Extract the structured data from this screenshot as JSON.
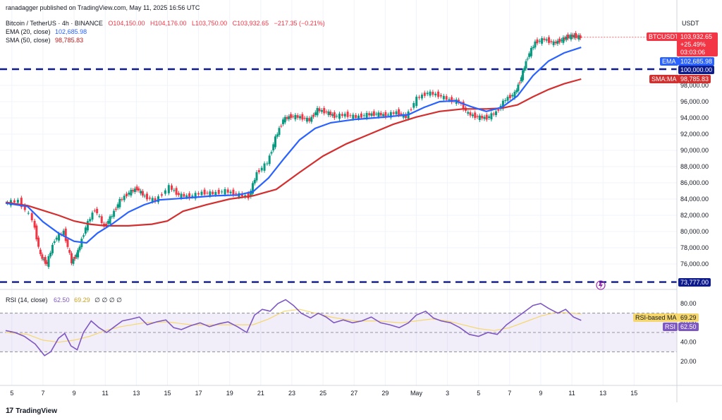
{
  "header": {
    "published_line": "ranadagger published on TradingView.com, May 11, 2025 16:56 UTC",
    "symbol_line": "Bitcoin / TetherUS · 4h · BINANCE",
    "ohlc": {
      "o": "O104,150.00",
      "h": "H104,176.00",
      "l": "L103,750.00",
      "c": "C103,932.65",
      "chg": "−217.35 (−0.21%)"
    },
    "ema_label": "EMA (20, close)",
    "ema_value": "102,685.98",
    "sma_label": "SMA (50, close)",
    "sma_value": "98,785.83",
    "rsi_label": "RSI (14, close)",
    "rsi_value": "62.50",
    "rsi_ma_value": "69.29",
    "rsi_extra": "∅ ∅ ∅ ∅"
  },
  "currency": "USDT",
  "tags": {
    "price_symbol": "BTCUSDT",
    "price_value": "103,932.65",
    "price_change": "+25.49%",
    "countdown": "03:03:06",
    "ema_tag": "EMA",
    "ema_value": "102,685.98",
    "level_100k": "100,000.00",
    "sma_tag": "SMA:MA",
    "sma_value": "98,785.83",
    "level_73k": "73,777.00",
    "rsi_ma_tag": "RSI-based MA",
    "rsi_ma_value": "69.29",
    "rsi_tag": "RSI",
    "rsi_value": "62.50"
  },
  "colors": {
    "up": "#089981",
    "down": "#f23645",
    "ema": "#2962ff",
    "sma": "#d32f2f",
    "level": "#0d1b8c",
    "rsi": "#7e57c2",
    "rsi_ma": "#f5d76e"
  },
  "footer": {
    "brand": "TradingView"
  },
  "chart_data": {
    "type": "line",
    "title": "Bitcoin / TetherUS · 4h · BINANCE",
    "price_axis": {
      "ticks": [
        76000,
        78000,
        80000,
        82000,
        84000,
        86000,
        88000,
        90000,
        92000,
        94000,
        96000,
        98000,
        100000
      ],
      "tick_labels": [
        "76,000.00",
        "78,000.00",
        "80,000.00",
        "82,000.00",
        "84,000.00",
        "86,000.00",
        "88,000.00",
        "90,000.00",
        "92,000.00",
        "94,000.00",
        "96,000.00",
        "98,000.00",
        "100,000.00"
      ],
      "range": [
        74000,
        106000
      ]
    },
    "rsi_axis": {
      "ticks": [
        20,
        40,
        60,
        80
      ],
      "tick_labels": [
        "20.00",
        "40.00",
        "60.00",
        "80.00"
      ],
      "bands": [
        30,
        50,
        70
      ]
    },
    "x_ticks": [
      {
        "day": 5,
        "label": "5"
      },
      {
        "day": 7,
        "label": "7"
      },
      {
        "day": 9,
        "label": "9"
      },
      {
        "day": 11,
        "label": "11"
      },
      {
        "day": 13,
        "label": "13"
      },
      {
        "day": 15,
        "label": "15"
      },
      {
        "day": 17,
        "label": "17"
      },
      {
        "day": 19,
        "label": "19"
      },
      {
        "day": 21,
        "label": "21"
      },
      {
        "day": 23,
        "label": "23"
      },
      {
        "day": 25,
        "label": "25"
      },
      {
        "day": 27,
        "label": "27"
      },
      {
        "day": 29,
        "label": "29"
      },
      {
        "day": 31,
        "label": "May"
      },
      {
        "day": 33,
        "label": "3"
      },
      {
        "day": 35,
        "label": "5"
      },
      {
        "day": 37,
        "label": "7"
      },
      {
        "day": 39,
        "label": "9"
      },
      {
        "day": 41,
        "label": "11"
      },
      {
        "day": 43,
        "label": "13"
      },
      {
        "day": 45,
        "label": "15"
      }
    ],
    "x_range": [
      4.6,
      46.3
    ],
    "horizontal_levels": [
      100000,
      73777
    ],
    "price_path": [
      [
        4.6,
        83500
      ],
      [
        5.5,
        83800
      ],
      [
        6.4,
        81500
      ],
      [
        6.9,
        77000
      ],
      [
        7.3,
        76000
      ],
      [
        7.8,
        79000
      ],
      [
        8.4,
        80000
      ],
      [
        8.9,
        76200
      ],
      [
        9.3,
        77500
      ],
      [
        9.8,
        80500
      ],
      [
        10.4,
        82800
      ],
      [
        11.0,
        80600
      ],
      [
        11.5,
        82000
      ],
      [
        12.0,
        83800
      ],
      [
        12.6,
        84800
      ],
      [
        13.1,
        85300
      ],
      [
        13.6,
        84300
      ],
      [
        14.3,
        83800
      ],
      [
        15.2,
        85500
      ],
      [
        15.8,
        84500
      ],
      [
        16.5,
        84300
      ],
      [
        17.3,
        84800
      ],
      [
        18.0,
        84700
      ],
      [
        18.8,
        85000
      ],
      [
        19.5,
        84600
      ],
      [
        20.3,
        84300
      ],
      [
        20.8,
        87200
      ],
      [
        21.5,
        88500
      ],
      [
        22.0,
        91500
      ],
      [
        22.5,
        93800
      ],
      [
        23.0,
        94200
      ],
      [
        23.6,
        94100
      ],
      [
        24.2,
        93700
      ],
      [
        24.7,
        95000
      ],
      [
        25.3,
        94700
      ],
      [
        25.8,
        94200
      ],
      [
        26.5,
        94400
      ],
      [
        27.2,
        94100
      ],
      [
        27.9,
        94400
      ],
      [
        28.5,
        94500
      ],
      [
        29.1,
        94300
      ],
      [
        29.8,
        94700
      ],
      [
        30.4,
        94100
      ],
      [
        31.1,
        96400
      ],
      [
        31.8,
        97100
      ],
      [
        32.5,
        96800
      ],
      [
        33.2,
        96200
      ],
      [
        33.8,
        96000
      ],
      [
        34.4,
        94500
      ],
      [
        35.0,
        94100
      ],
      [
        35.6,
        94000
      ],
      [
        36.2,
        94700
      ],
      [
        36.8,
        96300
      ],
      [
        37.4,
        97000
      ],
      [
        37.8,
        99000
      ],
      [
        38.2,
        101500
      ],
      [
        38.7,
        103300
      ],
      [
        39.3,
        103700
      ],
      [
        39.9,
        103200
      ],
      [
        40.4,
        103600
      ],
      [
        40.8,
        104000
      ],
      [
        41.2,
        104100
      ],
      [
        41.6,
        103933
      ]
    ],
    "ema20": [
      [
        4.6,
        83500
      ],
      [
        6.0,
        83100
      ],
      [
        7.0,
        81200
      ],
      [
        8.0,
        79800
      ],
      [
        9.0,
        78800
      ],
      [
        9.8,
        78600
      ],
      [
        10.5,
        79800
      ],
      [
        11.5,
        81000
      ],
      [
        12.5,
        82400
      ],
      [
        13.5,
        83300
      ],
      [
        14.5,
        83900
      ],
      [
        16.0,
        84100
      ],
      [
        18.0,
        84400
      ],
      [
        19.5,
        84500
      ],
      [
        20.5,
        84900
      ],
      [
        21.5,
        86600
      ],
      [
        22.5,
        89000
      ],
      [
        23.5,
        91300
      ],
      [
        24.5,
        92700
      ],
      [
        25.5,
        93400
      ],
      [
        27.0,
        93800
      ],
      [
        29.0,
        94100
      ],
      [
        30.5,
        94400
      ],
      [
        31.5,
        95300
      ],
      [
        32.5,
        96000
      ],
      [
        33.5,
        96100
      ],
      [
        34.5,
        95400
      ],
      [
        35.5,
        94800
      ],
      [
        36.5,
        95300
      ],
      [
        37.5,
        96700
      ],
      [
        38.5,
        99200
      ],
      [
        39.5,
        101000
      ],
      [
        40.5,
        102000
      ],
      [
        41.6,
        102686
      ]
    ],
    "sma50": [
      [
        4.6,
        83600
      ],
      [
        6.0,
        83200
      ],
      [
        7.0,
        82600
      ],
      [
        8.0,
        82000
      ],
      [
        9.0,
        81300
      ],
      [
        10.0,
        80900
      ],
      [
        11.0,
        80700
      ],
      [
        12.5,
        80700
      ],
      [
        14.0,
        80900
      ],
      [
        15.0,
        81300
      ],
      [
        16.0,
        82500
      ],
      [
        17.5,
        83300
      ],
      [
        19.0,
        84000
      ],
      [
        20.5,
        84400
      ],
      [
        22.0,
        85200
      ],
      [
        23.5,
        87300
      ],
      [
        25.0,
        89300
      ],
      [
        26.5,
        90800
      ],
      [
        28.0,
        92000
      ],
      [
        29.5,
        93200
      ],
      [
        31.0,
        94100
      ],
      [
        32.5,
        94800
      ],
      [
        34.0,
        95100
      ],
      [
        35.5,
        95100
      ],
      [
        36.5,
        95200
      ],
      [
        37.5,
        95600
      ],
      [
        38.5,
        96600
      ],
      [
        39.5,
        97500
      ],
      [
        40.5,
        98200
      ],
      [
        41.6,
        98786
      ]
    ],
    "rsi": [
      [
        4.6,
        52
      ],
      [
        5.2,
        50
      ],
      [
        5.8,
        46
      ],
      [
        6.5,
        38
      ],
      [
        7.1,
        26
      ],
      [
        7.5,
        30
      ],
      [
        8.0,
        44
      ],
      [
        8.4,
        49
      ],
      [
        8.8,
        36
      ],
      [
        9.2,
        32
      ],
      [
        9.6,
        50
      ],
      [
        10.1,
        62
      ],
      [
        10.6,
        55
      ],
      [
        11.1,
        50
      ],
      [
        11.6,
        56
      ],
      [
        12.1,
        62
      ],
      [
        12.7,
        64
      ],
      [
        13.2,
        66
      ],
      [
        13.7,
        58
      ],
      [
        14.3,
        61
      ],
      [
        14.9,
        63
      ],
      [
        15.4,
        55
      ],
      [
        15.9,
        53
      ],
      [
        16.5,
        57
      ],
      [
        17.1,
        60
      ],
      [
        17.7,
        56
      ],
      [
        18.3,
        59
      ],
      [
        18.9,
        61
      ],
      [
        19.5,
        56
      ],
      [
        20.1,
        50
      ],
      [
        20.6,
        68
      ],
      [
        21.1,
        74
      ],
      [
        21.6,
        72
      ],
      [
        22.1,
        80
      ],
      [
        22.6,
        84
      ],
      [
        23.1,
        78
      ],
      [
        23.6,
        70
      ],
      [
        24.2,
        65
      ],
      [
        24.7,
        70
      ],
      [
        25.2,
        66
      ],
      [
        25.7,
        60
      ],
      [
        26.3,
        63
      ],
      [
        26.9,
        60
      ],
      [
        27.5,
        62
      ],
      [
        28.1,
        66
      ],
      [
        28.7,
        60
      ],
      [
        29.3,
        58
      ],
      [
        29.9,
        55
      ],
      [
        30.5,
        60
      ],
      [
        31.0,
        68
      ],
      [
        31.6,
        72
      ],
      [
        32.1,
        65
      ],
      [
        32.6,
        62
      ],
      [
        33.2,
        60
      ],
      [
        33.8,
        55
      ],
      [
        34.4,
        48
      ],
      [
        35.0,
        46
      ],
      [
        35.6,
        50
      ],
      [
        36.2,
        48
      ],
      [
        36.8,
        58
      ],
      [
        37.4,
        65
      ],
      [
        38.0,
        72
      ],
      [
        38.5,
        78
      ],
      [
        39.0,
        80
      ],
      [
        39.5,
        75
      ],
      [
        40.1,
        70
      ],
      [
        40.6,
        74
      ],
      [
        41.1,
        66
      ],
      [
        41.6,
        62.5
      ]
    ],
    "rsi_ma": [
      [
        4.6,
        50
      ],
      [
        6.0,
        48
      ],
      [
        7.0,
        42
      ],
      [
        8.0,
        40
      ],
      [
        9.0,
        42
      ],
      [
        10.0,
        46
      ],
      [
        11.0,
        52
      ],
      [
        12.0,
        56
      ],
      [
        13.5,
        60
      ],
      [
        15.0,
        61
      ],
      [
        16.5,
        58
      ],
      [
        18.0,
        58
      ],
      [
        19.5,
        58
      ],
      [
        20.5,
        58
      ],
      [
        21.5,
        64
      ],
      [
        22.5,
        72
      ],
      [
        23.5,
        74
      ],
      [
        24.5,
        70
      ],
      [
        25.5,
        66
      ],
      [
        27.0,
        62
      ],
      [
        28.5,
        62
      ],
      [
        30.0,
        60
      ],
      [
        31.0,
        62
      ],
      [
        32.0,
        64
      ],
      [
        33.0,
        62
      ],
      [
        34.0,
        58
      ],
      [
        35.0,
        54
      ],
      [
        36.0,
        52
      ],
      [
        37.0,
        55
      ],
      [
        38.0,
        61
      ],
      [
        39.0,
        67
      ],
      [
        40.0,
        71
      ],
      [
        41.0,
        70
      ],
      [
        41.6,
        69.29
      ]
    ]
  }
}
